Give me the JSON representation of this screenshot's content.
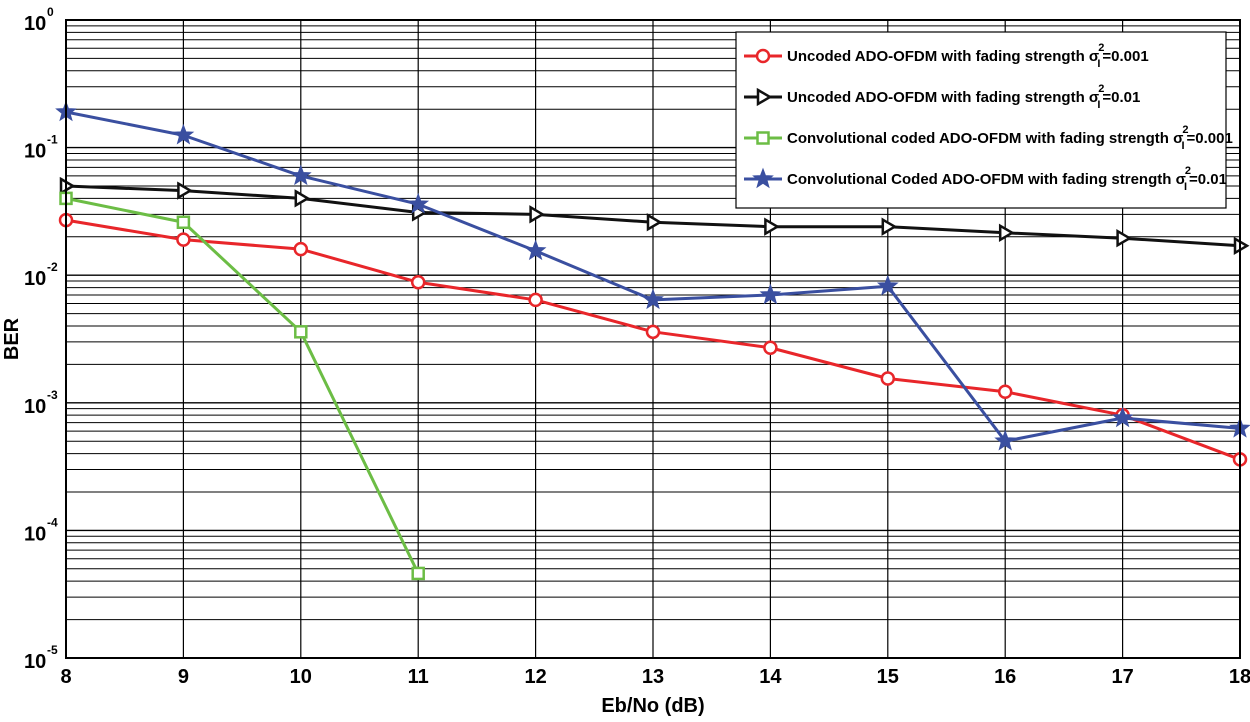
{
  "chart_data": {
    "type": "line",
    "xlabel": "Eb/No (dB)",
    "ylabel": "BER",
    "xlim": [
      8,
      18
    ],
    "ylim": [
      1e-05,
      1
    ],
    "yscale": "log",
    "grid": true,
    "legend_position": "top-right",
    "x_ticks": [
      "8",
      "9",
      "10",
      "11",
      "12",
      "13",
      "14",
      "15",
      "16",
      "17",
      "18"
    ],
    "y_ticks": [
      {
        "base": "10",
        "exp": "0"
      },
      {
        "base": "10",
        "exp": "-1"
      },
      {
        "base": "10",
        "exp": "-2"
      },
      {
        "base": "10",
        "exp": "-3"
      },
      {
        "base": "10",
        "exp": "-4"
      },
      {
        "base": "10",
        "exp": "-5"
      }
    ],
    "series": [
      {
        "name": "Uncoded ADO-OFDM with fading strength σ_I^2=0.001",
        "legend_prefix": "Uncoded ADO-OFDM with fading strength σ",
        "legend_sub": "I",
        "legend_sup": "2",
        "legend_suffix": "=0.001",
        "color": "#e8262a",
        "marker": "circle",
        "x": [
          8,
          9,
          10,
          11,
          12,
          13,
          14,
          15,
          16,
          17,
          18
        ],
        "y": [
          0.027,
          0.019,
          0.016,
          0.0088,
          0.0064,
          0.0036,
          0.0027,
          0.00155,
          0.00122,
          0.0008,
          0.00036
        ]
      },
      {
        "name": "Uncoded ADO-OFDM with fading strength σ_I^2=0.01",
        "legend_prefix": "Uncoded ADO-OFDM with fading strength σ",
        "legend_sub": "I",
        "legend_sup": "2",
        "legend_suffix": "=0.01",
        "color": "#111111",
        "marker": "triangle-right",
        "x": [
          8,
          9,
          10,
          11,
          12,
          13,
          14,
          15,
          16,
          17,
          18
        ],
        "y": [
          0.05,
          0.046,
          0.04,
          0.031,
          0.03,
          0.026,
          0.024,
          0.024,
          0.0215,
          0.0195,
          0.017
        ]
      },
      {
        "name": "Convolutional coded ADO-OFDM with fading strength σ_I^2=0.001",
        "legend_prefix": "Convolutional coded ADO-OFDM with fading strength σ",
        "legend_sub": "I",
        "legend_sup": "2",
        "legend_suffix": "=0.001",
        "color": "#6cbd45",
        "marker": "square",
        "x": [
          8,
          9,
          10,
          11
        ],
        "y": [
          0.04,
          0.026,
          0.0036,
          4.6e-05
        ]
      },
      {
        "name": "Convolutional Coded ADO-OFDM with fading strength σ_I^2=0.01",
        "legend_prefix": "Convolutional Coded ADO-OFDM with fading strength σ",
        "legend_sub": "I",
        "legend_sup": "2",
        "legend_suffix": "=0.01",
        "color": "#3a4fa0",
        "marker": "star",
        "x": [
          8,
          9,
          10,
          11,
          12,
          13,
          14,
          15,
          16,
          17,
          18
        ],
        "y": [
          0.19,
          0.125,
          0.06,
          0.036,
          0.0155,
          0.0064,
          0.007,
          0.0082,
          0.0005,
          0.00076,
          0.00063
        ]
      }
    ]
  }
}
